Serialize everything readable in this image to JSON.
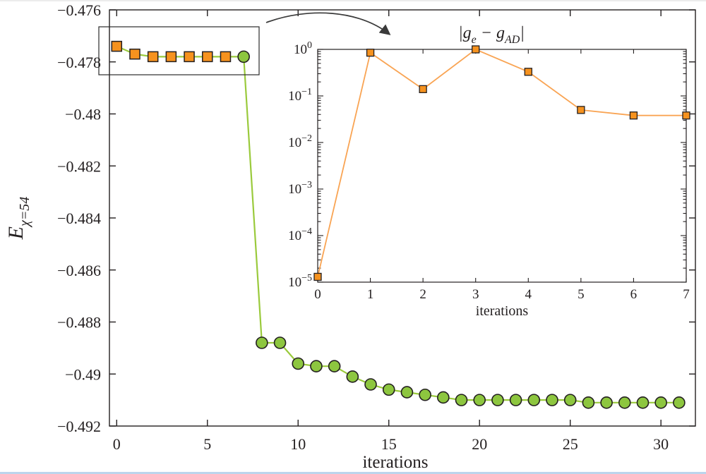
{
  "page": {
    "background": "#ffffff",
    "accent_green": "#8dc63f",
    "accent_orange": "#f6921e",
    "ink": "#231f20",
    "bottom_edge_color": "#bcd5ec"
  },
  "chart_data": [
    {
      "id": "main-energy-plot",
      "type": "line",
      "title": "",
      "xlabel": "iterations",
      "ylabel_parts": [
        {
          "t": "E"
        },
        {
          "t": "χ=54",
          "sub": true
        }
      ],
      "xlim": [
        -0.4,
        31.9
      ],
      "ylim": [
        -0.492,
        -0.476
      ],
      "grid": false,
      "legend": false,
      "xticks": [
        0,
        5,
        10,
        15,
        20,
        25,
        30
      ],
      "xticklabels": [
        "0",
        "5",
        "10",
        "15",
        "20",
        "25",
        "30"
      ],
      "yticks": [
        -0.476,
        -0.478,
        -0.48,
        -0.482,
        -0.484,
        -0.486,
        -0.488,
        -0.49,
        -0.492
      ],
      "yticklabels": [
        "−0.476",
        "−0.478",
        "−0.48",
        "−0.482",
        "−0.484",
        "−0.486",
        "−0.488",
        "−0.49",
        "−0.492"
      ],
      "series": [
        {
          "name": "energy-vs-iterations",
          "marker": "circle",
          "marker_color": "#8dc63f",
          "line_color": "#9aca3c",
          "marker_from_x": 7,
          "x": [
            0,
            1,
            2,
            3,
            4,
            5,
            6,
            7,
            8,
            9,
            10,
            11,
            12,
            13,
            14,
            15,
            16,
            17,
            18,
            19,
            20,
            21,
            22,
            23,
            24,
            25,
            26,
            27,
            28,
            29,
            30,
            31
          ],
          "y": [
            -0.4774,
            -0.4777,
            -0.4778,
            -0.4778,
            -0.4778,
            -0.4778,
            -0.4778,
            -0.4778,
            -0.4888,
            -0.4888,
            -0.4896,
            -0.4897,
            -0.4897,
            -0.4901,
            -0.4904,
            -0.4906,
            -0.4907,
            -0.4908,
            -0.4909,
            -0.491,
            -0.491,
            -0.491,
            -0.491,
            -0.491,
            -0.491,
            -0.491,
            -0.4911,
            -0.4911,
            -0.4911,
            -0.4911,
            -0.4911,
            -0.4911
          ]
        },
        {
          "name": "zoomed-region-points",
          "marker": "square",
          "marker_color": "#f6921e",
          "line_color": null,
          "x": [
            0,
            1,
            2,
            3,
            4,
            5,
            6
          ],
          "y": [
            -0.4774,
            -0.4777,
            -0.4778,
            -0.4778,
            -0.4778,
            -0.4778,
            -0.4778
          ]
        }
      ]
    },
    {
      "id": "inset-gradient-error-plot",
      "type": "line",
      "yscale": "log",
      "title_parts": [
        {
          "t": "|g"
        },
        {
          "t": "e",
          "sub": true
        },
        {
          "t": " − g"
        },
        {
          "t": "AD",
          "sub": true
        },
        {
          "t": "|"
        }
      ],
      "xlabel": "iterations",
      "xlim": [
        0,
        7
      ],
      "ylim_exponents": [
        0,
        -5
      ],
      "grid": false,
      "legend": false,
      "xticks": [
        0,
        1,
        2,
        3,
        4,
        5,
        6,
        7
      ],
      "xticklabels": [
        "0",
        "1",
        "2",
        "3",
        "4",
        "5",
        "6",
        "7"
      ],
      "ytick_exponents": [
        0,
        -1,
        -2,
        -3,
        -4,
        -5
      ],
      "ytick_exponent_labels": [
        "0",
        "−1",
        "−2",
        "−3",
        "−4",
        "−5"
      ],
      "series": [
        {
          "name": "gradient-difference",
          "marker": "square",
          "marker_color": "#f6921e",
          "line_color": "#f9a453",
          "x": [
            0,
            1,
            2,
            3,
            4,
            5,
            6,
            7
          ],
          "y": [
            1.3e-05,
            0.85,
            0.14,
            1.0,
            0.33,
            0.05,
            0.038,
            0.038
          ]
        }
      ]
    }
  ]
}
